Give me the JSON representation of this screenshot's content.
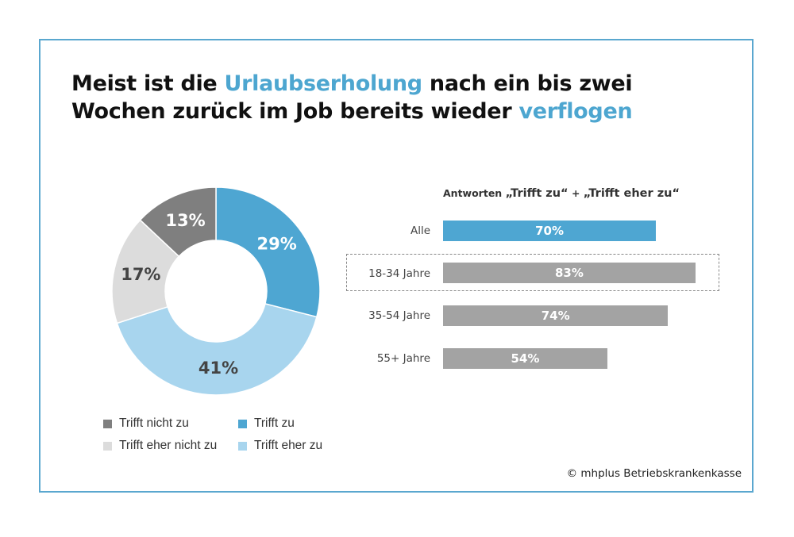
{
  "title": {
    "line1_a": "Meist ist die ",
    "line1_hl": "Urlaubserholung",
    "line1_b": " nach ein bis zwei",
    "line2_a": "Wochen zurück im Job bereits wieder ",
    "line2_hl": "verflogen"
  },
  "colors": {
    "accent": "#4da6d0",
    "frame": "#5aa7cf",
    "bar_grey": "#a3a3a3"
  },
  "chart_data": [
    {
      "type": "pie",
      "style": "donut",
      "slices": [
        {
          "label": "Trifft zu",
          "value": 29,
          "display": "29%",
          "color": "#4ea6d2"
        },
        {
          "label": "Trifft eher zu",
          "value": 41,
          "display": "41%",
          "color": "#a8d5ee"
        },
        {
          "label": "Trifft eher nicht zu",
          "value": 17,
          "display": "17%",
          "color": "#dcdcdc"
        },
        {
          "label": "Trifft nicht zu",
          "value": 13,
          "display": "13%",
          "color": "#7f7f7f"
        }
      ],
      "legend": [
        {
          "label": "Trifft nicht zu",
          "color": "#7f7f7f"
        },
        {
          "label": "Trifft zu",
          "color": "#4ea6d2"
        },
        {
          "label": "Trifft eher nicht zu",
          "color": "#dcdcdc"
        },
        {
          "label": "Trifft eher zu",
          "color": "#a8d5ee"
        }
      ],
      "legend_placement": "bottom"
    },
    {
      "type": "bar",
      "orientation": "horizontal",
      "title_parts": [
        "Antworten ",
        "„Trifft zu“",
        " + ",
        "„Trifft eher zu“"
      ],
      "categories": [
        "Alle",
        "18-34 Jahre",
        "35-54 Jahre",
        "55+ Jahre"
      ],
      "values": [
        70,
        83,
        74,
        54
      ],
      "value_labels": [
        "70%",
        "83%",
        "74%",
        "54%"
      ],
      "colors": [
        "#4ea6d2",
        "#a3a3a3",
        "#a3a3a3",
        "#a3a3a3"
      ],
      "highlighted": "18-34 Jahre"
    }
  ],
  "footer": {
    "copyright": "© mhplus Betriebskrankenkasse"
  }
}
